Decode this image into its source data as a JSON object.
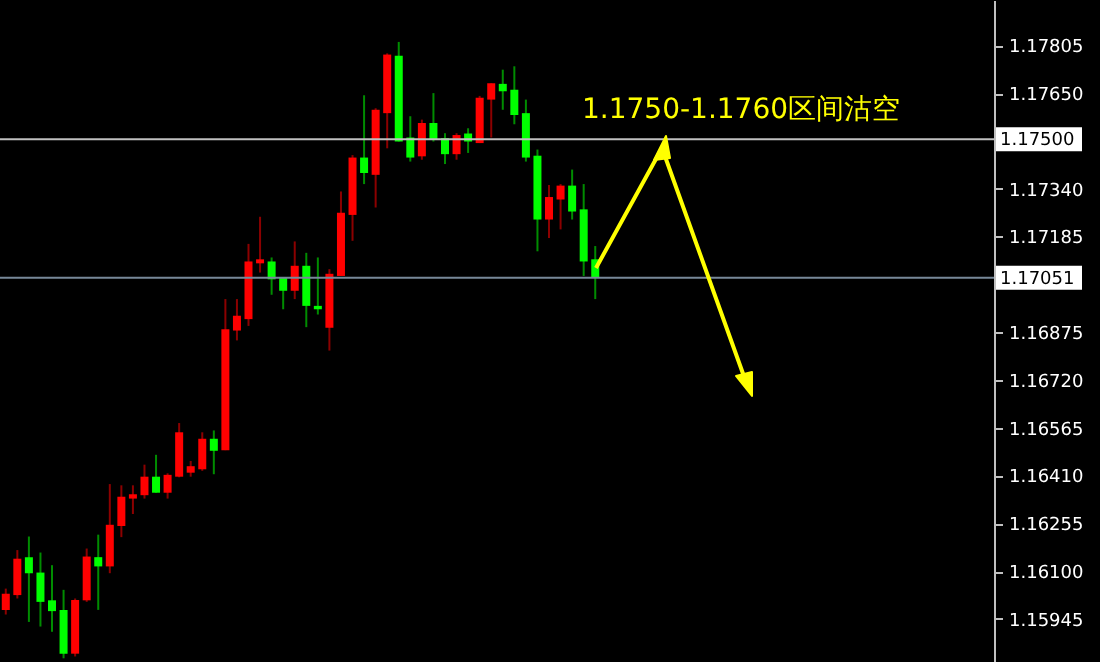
{
  "chart_data": {
    "type": "candlestick",
    "categories": [
      null,
      null,
      null,
      null,
      null,
      null,
      null,
      null,
      null,
      null,
      null,
      null,
      null,
      null,
      null,
      null,
      null,
      null,
      null,
      null,
      null,
      null,
      null,
      null,
      null,
      null,
      null,
      null,
      null,
      null,
      null,
      null,
      null,
      null,
      null,
      null,
      null,
      null,
      null,
      null,
      null,
      null,
      null,
      null,
      null,
      null,
      null,
      null,
      null,
      null,
      null,
      null,
      null,
      null,
      null,
      null,
      null,
      null,
      null,
      null,
      null,
      null,
      null,
      null,
      null,
      null,
      null,
      null,
      null,
      null,
      null,
      null,
      null,
      null,
      null,
      null,
      null,
      null,
      null,
      null,
      null,
      null,
      null,
      null,
      null,
      null
    ],
    "ohlc": [
      [
        1.15974,
        1.16043,
        1.15959,
        1.16026
      ],
      [
        1.16022,
        1.16168,
        1.16011,
        1.1614
      ],
      [
        1.16145,
        1.16212,
        1.15935,
        1.16093
      ],
      [
        1.16095,
        1.1616,
        1.1592,
        1.16
      ],
      [
        1.16005,
        1.16119,
        1.15903,
        1.1597
      ],
      [
        1.15974,
        1.16039,
        1.15817,
        1.15832
      ],
      [
        1.15832,
        1.16011,
        1.15823,
        1.16006
      ],
      [
        1.16005,
        1.16173,
        1.16,
        1.16147
      ],
      [
        1.16145,
        1.16218,
        1.15974,
        1.16115
      ],
      [
        1.16115,
        1.16382,
        1.16093,
        1.1625
      ],
      [
        1.16246,
        1.16378,
        1.1621,
        1.16341
      ],
      [
        1.16335,
        1.16378,
        1.16285,
        1.16349
      ],
      [
        1.16346,
        1.16445,
        1.16335,
        1.16406
      ],
      [
        1.16406,
        1.16477,
        1.16354,
        1.16354
      ],
      [
        1.16354,
        1.16417,
        1.16335,
        1.16412
      ],
      [
        1.16406,
        1.1658,
        1.16404,
        1.1655
      ],
      [
        1.16419,
        1.16457,
        1.16406,
        1.1644
      ],
      [
        1.1643,
        1.1655,
        1.16425,
        1.16529
      ],
      [
        1.16529,
        1.16556,
        1.16414,
        1.1649
      ],
      [
        1.16492,
        1.16982,
        1.16492,
        1.16884
      ],
      [
        1.1688,
        1.16982,
        1.16848,
        1.16928
      ],
      [
        1.16917,
        1.17161,
        1.16895,
        1.17104
      ],
      [
        1.17098,
        1.17249,
        1.17068,
        1.17111
      ],
      [
        1.17104,
        1.17117,
        1.16996,
        1.17046
      ],
      [
        1.17053,
        1.17053,
        1.16949,
        1.17009
      ],
      [
        1.17009,
        1.17169,
        1.16982,
        1.1709
      ],
      [
        1.1709,
        1.17132,
        1.16891,
        1.1696
      ],
      [
        1.1696,
        1.17117,
        1.16932,
        1.16949
      ],
      [
        1.16889,
        1.17079,
        1.16815,
        1.17064
      ],
      [
        1.17057,
        1.17331,
        1.17057,
        1.17262
      ],
      [
        1.17255,
        1.17449,
        1.17171,
        1.17441
      ],
      [
        1.17441,
        1.17643,
        1.17355,
        1.17391
      ],
      [
        1.17385,
        1.17601,
        1.17279,
        1.17596
      ],
      [
        1.17585,
        1.17779,
        1.17471,
        1.17775
      ],
      [
        1.17771,
        1.17816,
        1.17493,
        1.17493
      ],
      [
        1.17506,
        1.17575,
        1.17428,
        1.17441
      ],
      [
        1.17445,
        1.17564,
        1.17434,
        1.17553
      ],
      [
        1.17553,
        1.1765,
        1.17493,
        1.17499
      ],
      [
        1.17504,
        1.1752,
        1.1742,
        1.17452
      ],
      [
        1.17452,
        1.1752,
        1.17434,
        1.17514
      ],
      [
        1.17519,
        1.17536,
        1.17456,
        1.17493
      ],
      [
        1.17488,
        1.17641,
        1.17488,
        1.17635
      ],
      [
        1.17629,
        1.17682,
        1.17506,
        1.17682
      ],
      [
        1.1768,
        1.17726,
        1.17596,
        1.17656
      ],
      [
        1.17661,
        1.17737,
        1.17549,
        1.17579
      ],
      [
        1.17585,
        1.17629,
        1.17428,
        1.17441
      ],
      [
        1.17447,
        1.17467,
        1.17137,
        1.1724
      ],
      [
        1.1724,
        1.17352,
        1.1718,
        1.17313
      ],
      [
        1.17305,
        1.17355,
        1.17208,
        1.1735
      ],
      [
        1.1735,
        1.17402,
        1.1724,
        1.17266
      ],
      [
        1.17273,
        1.17355,
        1.17057,
        1.17104
      ],
      [
        1.17111,
        1.17154,
        1.16982,
        1.17051
      ],
      null,
      null,
      null,
      null,
      null,
      null,
      null,
      null,
      null,
      null,
      null,
      null,
      null,
      null,
      null,
      null,
      null,
      null,
      null,
      null,
      null,
      null,
      null,
      null,
      null,
      null,
      null,
      null,
      null,
      null,
      null,
      null,
      null,
      null
    ],
    "colors": [
      "#ff0000",
      "#ff0000",
      "#00ff00",
      "#00ff00",
      "#00ff00",
      "#00ff00",
      "#ff0000",
      "#ff0000",
      "#00ff00",
      "#ff0000",
      "#ff0000",
      "#ff0000",
      "#ff0000",
      "#00ff00",
      "#ff0000",
      "#ff0000",
      "#ff0000",
      "#ff0000",
      "#00ff00",
      "#ff0000",
      "#ff0000",
      "#ff0000",
      "#ff0000",
      "#00ff00",
      "#00ff00",
      "#ff0000",
      "#00ff00",
      "#00ff00",
      "#ff0000",
      "#ff0000",
      "#ff0000",
      "#00ff00",
      "#ff0000",
      "#ff0000",
      "#00ff00",
      "#00ff00",
      "#ff0000",
      "#00ff00",
      "#00ff00",
      "#ff0000",
      "#00ff00",
      "#ff0000",
      "#ff0000",
      "#00ff00",
      "#00ff00",
      "#00ff00",
      "#00ff00",
      "#ff0000",
      "#ff0000",
      "#00ff00",
      "#00ff00",
      "#00ff00",
      null,
      null,
      null,
      null,
      null,
      null,
      null,
      null,
      null,
      null,
      null,
      null,
      null,
      null,
      null,
      null,
      null,
      null,
      null,
      null,
      null,
      null,
      null,
      null,
      null,
      null,
      null,
      null,
      null,
      null,
      null,
      null,
      null,
      null
    ],
    "ylim": [
      1.15805,
      1.17952
    ],
    "yticks": [
      {
        "value": 1.17805,
        "label": "1.17805"
      },
      {
        "value": 1.1765,
        "label": "1.17650"
      },
      {
        "value": 1.1734,
        "label": "1.17340"
      },
      {
        "value": 1.17185,
        "label": "1.17185"
      },
      {
        "value": 1.16875,
        "label": "1.16875"
      },
      {
        "value": 1.1672,
        "label": "1.16720"
      },
      {
        "value": 1.16565,
        "label": "1.16565"
      },
      {
        "value": 1.1641,
        "label": "1.16410"
      },
      {
        "value": 1.16255,
        "label": "1.16255"
      },
      {
        "value": 1.161,
        "label": "1.16100"
      },
      {
        "value": 1.15945,
        "label": "1.15945"
      }
    ],
    "ref_lines": [
      {
        "axis": "y",
        "value": 1.175,
        "label": "1.17500",
        "color": "#c0c0c0"
      },
      {
        "axis": "y",
        "value": 1.17051,
        "label": "1.17051",
        "color": "#778899"
      }
    ],
    "annotations": [
      "1.1750-1.1760区间沽空"
    ],
    "tick_labels": "y",
    "grid": false
  }
}
